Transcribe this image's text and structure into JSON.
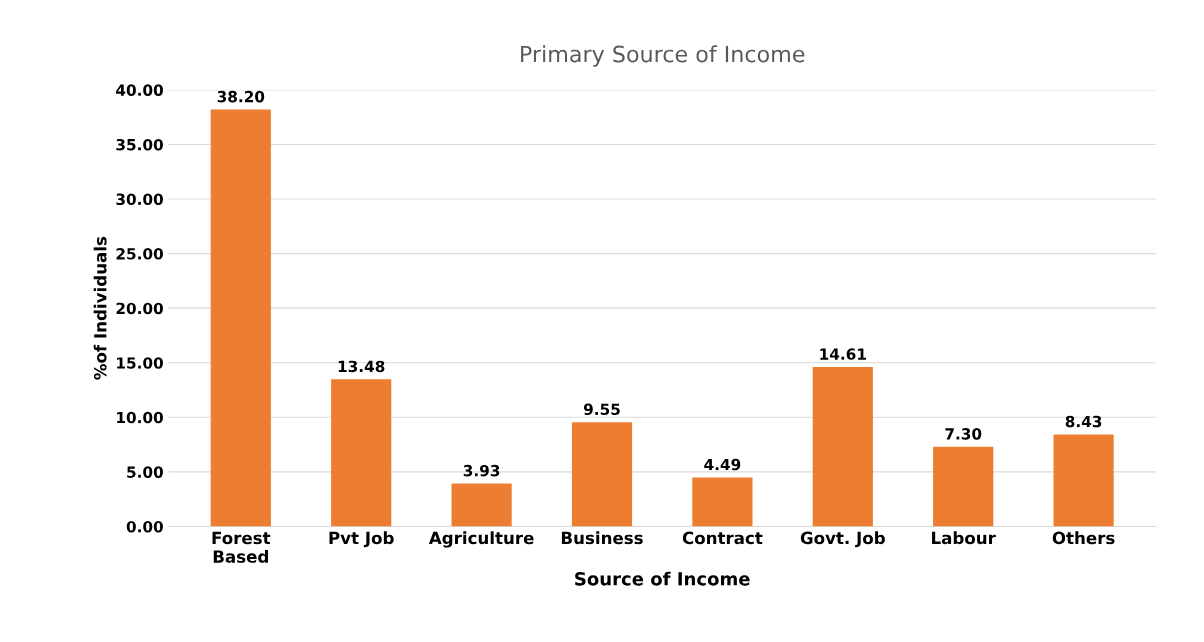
{
  "chart_data": {
    "type": "bar",
    "title": "Primary Source of Income",
    "xlabel": "Source of Income",
    "ylabel": "%of Individuals",
    "categories": [
      "Forest\nBased",
      "Pvt Job",
      "Agriculture",
      "Business",
      "Contract",
      "Govt. Job",
      "Labour",
      "Others"
    ],
    "values": [
      38.2,
      13.48,
      3.93,
      9.55,
      4.49,
      14.61,
      7.3,
      8.43
    ],
    "value_labels": [
      "38.20",
      "13.48",
      "3.93",
      "9.55",
      "4.49",
      "14.61",
      "7.30",
      "8.43"
    ],
    "color": "#ed7d31",
    "ylim": [
      0,
      40
    ],
    "yticks": [
      {
        "value": 0,
        "label": "0.00"
      },
      {
        "value": 5,
        "label": "5.00"
      },
      {
        "value": 10,
        "label": "10.00"
      },
      {
        "value": 15,
        "label": "15.00"
      },
      {
        "value": 20,
        "label": "20.00"
      },
      {
        "value": 25,
        "label": "25.00"
      },
      {
        "value": 30,
        "label": "30.00"
      },
      {
        "value": 35,
        "label": "35.00"
      },
      {
        "value": 40,
        "label": "40.00"
      }
    ],
    "grid": "y"
  }
}
